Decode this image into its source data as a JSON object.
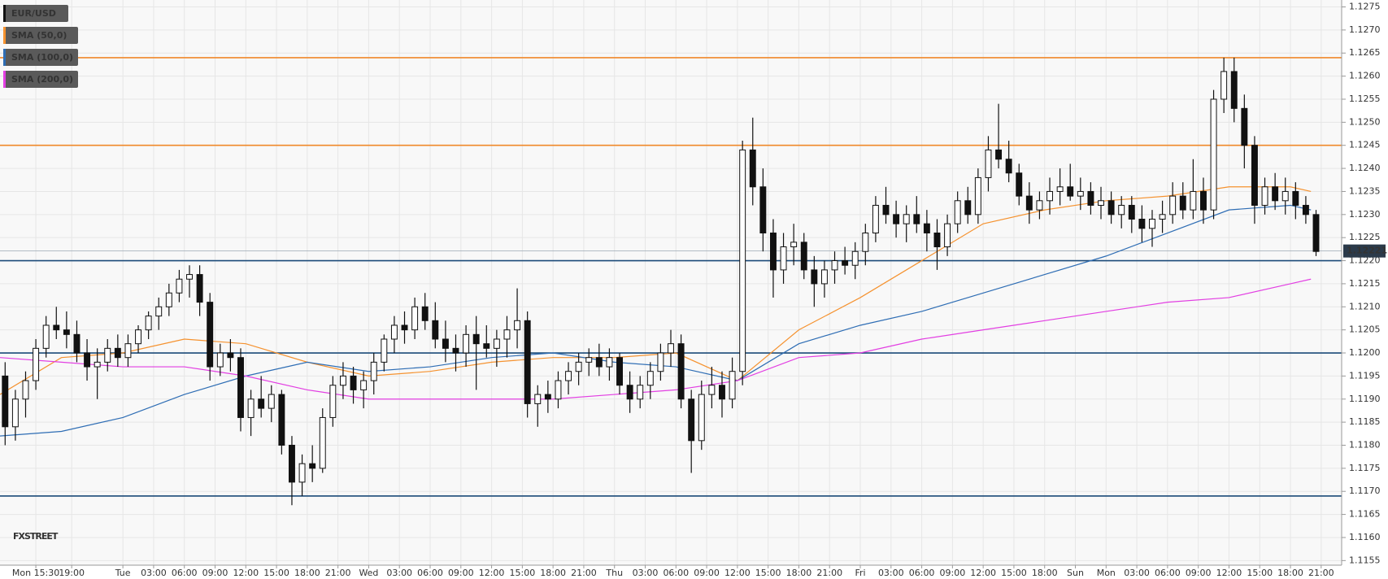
{
  "chart_data": {
    "type": "candlestick",
    "candle_name": "EUR/USD",
    "candle_color": "#111111",
    "candles": [
      [
        1.1195,
        1.1198,
        1.118,
        1.1184
      ],
      [
        1.1184,
        1.1192,
        1.1181,
        1.119
      ],
      [
        1.119,
        1.1196,
        1.1186,
        1.1194
      ],
      [
        1.1194,
        1.1203,
        1.1192,
        1.1201
      ],
      [
        1.1201,
        1.1208,
        1.1199,
        1.1206
      ],
      [
        1.1206,
        1.121,
        1.1203,
        1.1205
      ],
      [
        1.1205,
        1.1209,
        1.1201,
        1.1204
      ],
      [
        1.1204,
        1.1207,
        1.1198,
        1.12
      ],
      [
        1.12,
        1.1203,
        1.1194,
        1.1197
      ],
      [
        1.1197,
        1.1201,
        1.119,
        1.1198
      ],
      [
        1.1198,
        1.1203,
        1.1196,
        1.1201
      ],
      [
        1.1201,
        1.1204,
        1.1197,
        1.1199
      ],
      [
        1.1199,
        1.1204,
        1.1197,
        1.1202
      ],
      [
        1.1202,
        1.1206,
        1.12,
        1.1205
      ],
      [
        1.1205,
        1.1209,
        1.1203,
        1.1208
      ],
      [
        1.1208,
        1.1212,
        1.1205,
        1.121
      ],
      [
        1.121,
        1.1215,
        1.1208,
        1.1213
      ],
      [
        1.1213,
        1.1218,
        1.1211,
        1.1216
      ],
      [
        1.1216,
        1.1219,
        1.1212,
        1.1217
      ],
      [
        1.1217,
        1.1219,
        1.1208,
        1.1211
      ],
      [
        1.1211,
        1.1213,
        1.1194,
        1.1197
      ],
      [
        1.1197,
        1.1202,
        1.1195,
        1.12
      ],
      [
        1.12,
        1.1203,
        1.1196,
        1.1199
      ],
      [
        1.1199,
        1.1201,
        1.1183,
        1.1186
      ],
      [
        1.1186,
        1.1192,
        1.1182,
        1.119
      ],
      [
        1.119,
        1.1195,
        1.1186,
        1.1188
      ],
      [
        1.1188,
        1.1193,
        1.1185,
        1.1191
      ],
      [
        1.1191,
        1.1192,
        1.1178,
        1.118
      ],
      [
        1.118,
        1.1182,
        1.1167,
        1.1172
      ],
      [
        1.1172,
        1.1178,
        1.1169,
        1.1176
      ],
      [
        1.1176,
        1.118,
        1.1172,
        1.1175
      ],
      [
        1.1175,
        1.1188,
        1.1174,
        1.1186
      ],
      [
        1.1186,
        1.1195,
        1.1184,
        1.1193
      ],
      [
        1.1193,
        1.1198,
        1.119,
        1.1195
      ],
      [
        1.1195,
        1.1197,
        1.1189,
        1.1192
      ],
      [
        1.1192,
        1.1196,
        1.1188,
        1.1194
      ],
      [
        1.1194,
        1.12,
        1.1191,
        1.1198
      ],
      [
        1.1198,
        1.1204,
        1.1196,
        1.1203
      ],
      [
        1.1203,
        1.1208,
        1.12,
        1.1206
      ],
      [
        1.1206,
        1.1209,
        1.1202,
        1.1205
      ],
      [
        1.1205,
        1.1212,
        1.1203,
        1.121
      ],
      [
        1.121,
        1.1213,
        1.1205,
        1.1207
      ],
      [
        1.1207,
        1.1211,
        1.1201,
        1.1203
      ],
      [
        1.1203,
        1.1207,
        1.1198,
        1.1201
      ],
      [
        1.1201,
        1.1204,
        1.1196,
        1.12
      ],
      [
        1.12,
        1.1206,
        1.1197,
        1.1204
      ],
      [
        1.1204,
        1.1208,
        1.1192,
        1.1202
      ],
      [
        1.1202,
        1.1206,
        1.1199,
        1.1201
      ],
      [
        1.1201,
        1.1205,
        1.1197,
        1.1203
      ],
      [
        1.1203,
        1.1208,
        1.1199,
        1.1205
      ],
      [
        1.1205,
        1.1214,
        1.1201,
        1.1207
      ],
      [
        1.1207,
        1.1209,
        1.1186,
        1.1189
      ],
      [
        1.1189,
        1.1193,
        1.1184,
        1.1191
      ],
      [
        1.1191,
        1.1194,
        1.1187,
        1.119
      ],
      [
        1.119,
        1.1196,
        1.1188,
        1.1194
      ],
      [
        1.1194,
        1.1198,
        1.1191,
        1.1196
      ],
      [
        1.1196,
        1.12,
        1.1193,
        1.1198
      ],
      [
        1.1198,
        1.1201,
        1.1195,
        1.1199
      ],
      [
        1.1199,
        1.1202,
        1.1195,
        1.1197
      ],
      [
        1.1197,
        1.1201,
        1.1194,
        1.1199
      ],
      [
        1.1199,
        1.12,
        1.1191,
        1.1193
      ],
      [
        1.1193,
        1.1196,
        1.1187,
        1.119
      ],
      [
        1.119,
        1.1195,
        1.1188,
        1.1193
      ],
      [
        1.1193,
        1.1198,
        1.119,
        1.1196
      ],
      [
        1.1196,
        1.1202,
        1.1194,
        1.12
      ],
      [
        1.12,
        1.1205,
        1.1197,
        1.1202
      ],
      [
        1.1202,
        1.1204,
        1.1188,
        1.119
      ],
      [
        1.119,
        1.1192,
        1.1174,
        1.1181
      ],
      [
        1.1181,
        1.1194,
        1.1179,
        1.1191
      ],
      [
        1.1191,
        1.1197,
        1.1188,
        1.1193
      ],
      [
        1.1193,
        1.1196,
        1.1186,
        1.119
      ],
      [
        1.119,
        1.1199,
        1.1188,
        1.1196
      ],
      [
        1.1196,
        1.1246,
        1.1193,
        1.1244
      ],
      [
        1.1244,
        1.1251,
        1.1232,
        1.1236
      ],
      [
        1.1236,
        1.124,
        1.1222,
        1.1226
      ],
      [
        1.1226,
        1.1229,
        1.1212,
        1.1218
      ],
      [
        1.1218,
        1.1226,
        1.1215,
        1.1223
      ],
      [
        1.1223,
        1.1228,
        1.1219,
        1.1224
      ],
      [
        1.1224,
        1.1226,
        1.1216,
        1.1218
      ],
      [
        1.1218,
        1.1221,
        1.121,
        1.1215
      ],
      [
        1.1215,
        1.122,
        1.1212,
        1.1218
      ],
      [
        1.1218,
        1.1222,
        1.1215,
        1.122
      ],
      [
        1.122,
        1.1223,
        1.1217,
        1.1219
      ],
      [
        1.1219,
        1.1224,
        1.1216,
        1.1222
      ],
      [
        1.1222,
        1.1228,
        1.1219,
        1.1226
      ],
      [
        1.1226,
        1.1234,
        1.1224,
        1.1232
      ],
      [
        1.1232,
        1.1236,
        1.1228,
        1.123
      ],
      [
        1.123,
        1.1233,
        1.1225,
        1.1228
      ],
      [
        1.1228,
        1.1232,
        1.1224,
        1.123
      ],
      [
        1.123,
        1.1234,
        1.1226,
        1.1228
      ],
      [
        1.1228,
        1.1231,
        1.1222,
        1.1226
      ],
      [
        1.1226,
        1.1229,
        1.1218,
        1.1223
      ],
      [
        1.1223,
        1.123,
        1.1221,
        1.1228
      ],
      [
        1.1228,
        1.1235,
        1.1226,
        1.1233
      ],
      [
        1.1233,
        1.1236,
        1.1228,
        1.123
      ],
      [
        1.123,
        1.124,
        1.1228,
        1.1238
      ],
      [
        1.1238,
        1.1247,
        1.1235,
        1.1244
      ],
      [
        1.1244,
        1.1254,
        1.124,
        1.1242
      ],
      [
        1.1242,
        1.1246,
        1.1237,
        1.1239
      ],
      [
        1.1239,
        1.1241,
        1.1232,
        1.1234
      ],
      [
        1.1234,
        1.1237,
        1.1228,
        1.1231
      ],
      [
        1.1231,
        1.1235,
        1.1229,
        1.1233
      ],
      [
        1.1233,
        1.1238,
        1.123,
        1.1235
      ],
      [
        1.1235,
        1.124,
        1.1232,
        1.1236
      ],
      [
        1.1236,
        1.1241,
        1.1233,
        1.1234
      ],
      [
        1.1234,
        1.1238,
        1.1231,
        1.1235
      ],
      [
        1.1235,
        1.1237,
        1.123,
        1.1232
      ],
      [
        1.1232,
        1.1236,
        1.1229,
        1.1233
      ],
      [
        1.1233,
        1.1235,
        1.1228,
        1.123
      ],
      [
        1.123,
        1.1234,
        1.1227,
        1.1232
      ],
      [
        1.1232,
        1.1234,
        1.1226,
        1.1229
      ],
      [
        1.1229,
        1.1232,
        1.1224,
        1.1227
      ],
      [
        1.1227,
        1.1231,
        1.1223,
        1.1229
      ],
      [
        1.1229,
        1.1233,
        1.1226,
        1.123
      ],
      [
        1.123,
        1.1237,
        1.1228,
        1.1234
      ],
      [
        1.1234,
        1.1237,
        1.1229,
        1.1231
      ],
      [
        1.1231,
        1.1242,
        1.1229,
        1.1235
      ],
      [
        1.1235,
        1.1238,
        1.1228,
        1.1231
      ],
      [
        1.1231,
        1.1257,
        1.1229,
        1.1255
      ],
      [
        1.1255,
        1.1264,
        1.1252,
        1.1261
      ],
      [
        1.1261,
        1.1264,
        1.125,
        1.1253
      ],
      [
        1.1253,
        1.1256,
        1.124,
        1.1245
      ],
      [
        1.1245,
        1.1247,
        1.1228,
        1.1232
      ],
      [
        1.1232,
        1.1238,
        1.123,
        1.1236
      ],
      [
        1.1236,
        1.1239,
        1.1231,
        1.1233
      ],
      [
        1.1233,
        1.1238,
        1.123,
        1.1235
      ],
      [
        1.1235,
        1.1237,
        1.1229,
        1.1232
      ],
      [
        1.1232,
        1.1234,
        1.1228,
        1.123
      ],
      [
        1.123,
        1.1231,
        1.1221,
        1.1222
      ]
    ],
    "sma_x": [
      0,
      6,
      12,
      18,
      24,
      30,
      36,
      42,
      48,
      54,
      60,
      66,
      72,
      78,
      84,
      90,
      96,
      102,
      108,
      114,
      120,
      126,
      128
    ],
    "sma": [
      {
        "name": "SMA (50,0)",
        "color": "#f5922f",
        "values": [
          1.1191,
          1.1199,
          1.12,
          1.1203,
          1.1202,
          1.1198,
          1.1195,
          1.1196,
          1.1198,
          1.1199,
          1.1199,
          1.12,
          1.1194,
          1.1205,
          1.1212,
          1.122,
          1.1228,
          1.1231,
          1.1233,
          1.1234,
          1.1236,
          1.1236,
          1.1235
        ]
      },
      {
        "name": "SMA (100,0)",
        "color": "#2e6db4",
        "values": [
          1.1182,
          1.1183,
          1.1186,
          1.1191,
          1.1195,
          1.1198,
          1.1196,
          1.1197,
          1.1199,
          1.12,
          1.1198,
          1.1197,
          1.1194,
          1.1202,
          1.1206,
          1.1209,
          1.1213,
          1.1217,
          1.1221,
          1.1226,
          1.1231,
          1.1232,
          1.1231
        ]
      },
      {
        "name": "SMA (200,0)",
        "color": "#e23fe2",
        "values": [
          1.1199,
          1.1198,
          1.1197,
          1.1197,
          1.1195,
          1.1192,
          1.119,
          1.119,
          1.119,
          1.119,
          1.1191,
          1.1192,
          1.1194,
          1.1199,
          1.12,
          1.1203,
          1.1205,
          1.1207,
          1.1209,
          1.1211,
          1.1212,
          1.1215,
          1.1216
        ]
      }
    ],
    "levels": [
      {
        "value": 1.1264,
        "color": "#f0892a"
      },
      {
        "value": 1.1245,
        "color": "#f0892a"
      },
      {
        "value": 1.122,
        "color": "#1b4a78"
      },
      {
        "value": 1.12,
        "color": "#1b4a78"
      },
      {
        "value": 1.1169,
        "color": "#1b4a78"
      }
    ],
    "last_price": 1.12221,
    "watermark": "FXSTREET",
    "grid": true,
    "xlim": [
      0,
      131
    ],
    "ylim": [
      1.1154,
      1.12765
    ],
    "yticks": [
      1.1275,
      {
        "value": 1.127,
        "label": "1.1270"
      },
      1.1265,
      {
        "value": 1.126,
        "label": "1.1260"
      },
      1.1255,
      {
        "value": 1.125,
        "label": "1.1250"
      },
      1.1245,
      {
        "value": 1.124,
        "label": "1.1240"
      },
      1.1235,
      {
        "value": 1.123,
        "label": "1.1230"
      },
      1.1225,
      {
        "value": 1.122,
        "label": "1.1220"
      },
      1.1215,
      {
        "value": 1.121,
        "label": "1.1210"
      },
      1.1205,
      {
        "value": 1.12,
        "label": "1.1200"
      },
      1.1195,
      {
        "value": 1.119,
        "label": "1.1190"
      },
      1.1185,
      {
        "value": 1.118,
        "label": "1.1180"
      },
      1.1175,
      {
        "value": 1.117,
        "label": "1.1170"
      },
      1.1165,
      {
        "value": 1.116,
        "label": "1.1160"
      },
      1.1155
    ],
    "xticks": [
      {
        "value": 3.5,
        "label": "Mon 15:30"
      },
      {
        "value": 7,
        "label": "19:00"
      },
      {
        "value": 12,
        "label": "Tue"
      },
      {
        "value": 15,
        "label": "03:00"
      },
      {
        "value": 18,
        "label": "06:00"
      },
      {
        "value": 21,
        "label": "09:00"
      },
      {
        "value": 24,
        "label": "12:00"
      },
      {
        "value": 27,
        "label": "15:00"
      },
      {
        "value": 30,
        "label": "18:00"
      },
      {
        "value": 33,
        "label": "21:00"
      },
      {
        "value": 36,
        "label": "Wed"
      },
      {
        "value": 39,
        "label": "03:00"
      },
      {
        "value": 42,
        "label": "06:00"
      },
      {
        "value": 45,
        "label": "09:00"
      },
      {
        "value": 48,
        "label": "12:00"
      },
      {
        "value": 51,
        "label": "15:00"
      },
      {
        "value": 54,
        "label": "18:00"
      },
      {
        "value": 57,
        "label": "21:00"
      },
      {
        "value": 60,
        "label": "Thu"
      },
      {
        "value": 63,
        "label": "03:00"
      },
      {
        "value": 66,
        "label": "06:00"
      },
      {
        "value": 69,
        "label": "09:00"
      },
      {
        "value": 72,
        "label": "12:00"
      },
      {
        "value": 75,
        "label": "15:00"
      },
      {
        "value": 78,
        "label": "18:00"
      },
      {
        "value": 81,
        "label": "21:00"
      },
      {
        "value": 84,
        "label": "Fri"
      },
      {
        "value": 87,
        "label": "03:00"
      },
      {
        "value": 90,
        "label": "06:00"
      },
      {
        "value": 93,
        "label": "09:00"
      },
      {
        "value": 96,
        "label": "12:00"
      },
      {
        "value": 99,
        "label": "15:00"
      },
      {
        "value": 102,
        "label": "18:00"
      },
      {
        "value": 105,
        "label": "Sun"
      },
      {
        "value": 108,
        "label": "Mon"
      },
      {
        "value": 111,
        "label": "03:00"
      },
      {
        "value": 114,
        "label": "06:00"
      },
      {
        "value": 117,
        "label": "09:00"
      },
      {
        "value": 120,
        "label": "12:00"
      },
      {
        "value": 123,
        "label": "15:00"
      },
      {
        "value": 126,
        "label": "18:00"
      },
      {
        "value": 129,
        "label": "21:00"
      }
    ]
  }
}
